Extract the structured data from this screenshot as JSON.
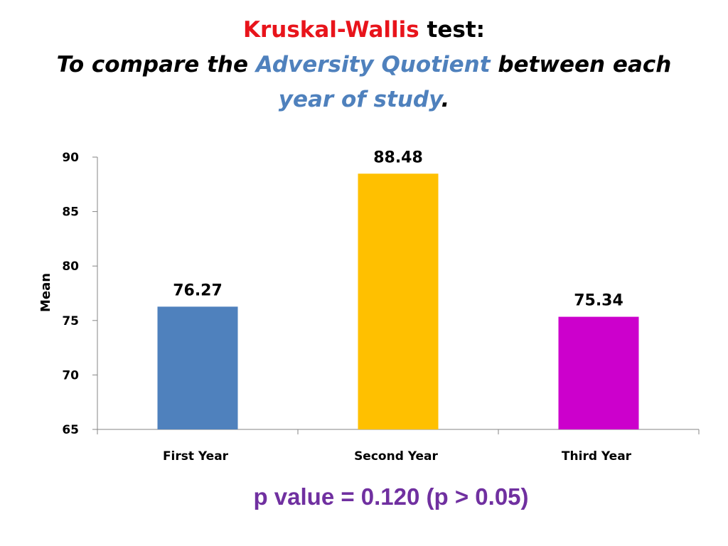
{
  "title": {
    "test_name": "Kruskal-Wallis",
    "test_suffix": " test:",
    "line2_prefix": "To compare the ",
    "line2_highlight": "Adversity Quotient",
    "line2_suffix": " between each",
    "line3_highlight": "year of study",
    "line3_suffix": "."
  },
  "colors": {
    "title_red": "#e8141b",
    "title_blue": "#4f81bd",
    "footnote_purple": "#7030a0"
  },
  "chart_data": {
    "type": "bar",
    "categories": [
      "First Year",
      "Second Year",
      "Third Year"
    ],
    "values": [
      76.27,
      88.48,
      75.34
    ],
    "data_labels": [
      "76.27",
      "88.48",
      "75.34"
    ],
    "bar_colors": [
      "#4f81bd",
      "#ffc000",
      "#cc00cc"
    ],
    "ylabel": "Mean",
    "xlabel": "",
    "ylim": [
      65,
      90
    ],
    "yticks": [
      90,
      85,
      80,
      75,
      70,
      65
    ],
    "grid": false,
    "legend": "none"
  },
  "footnote": "p value = 0.120 (p > 0.05)"
}
